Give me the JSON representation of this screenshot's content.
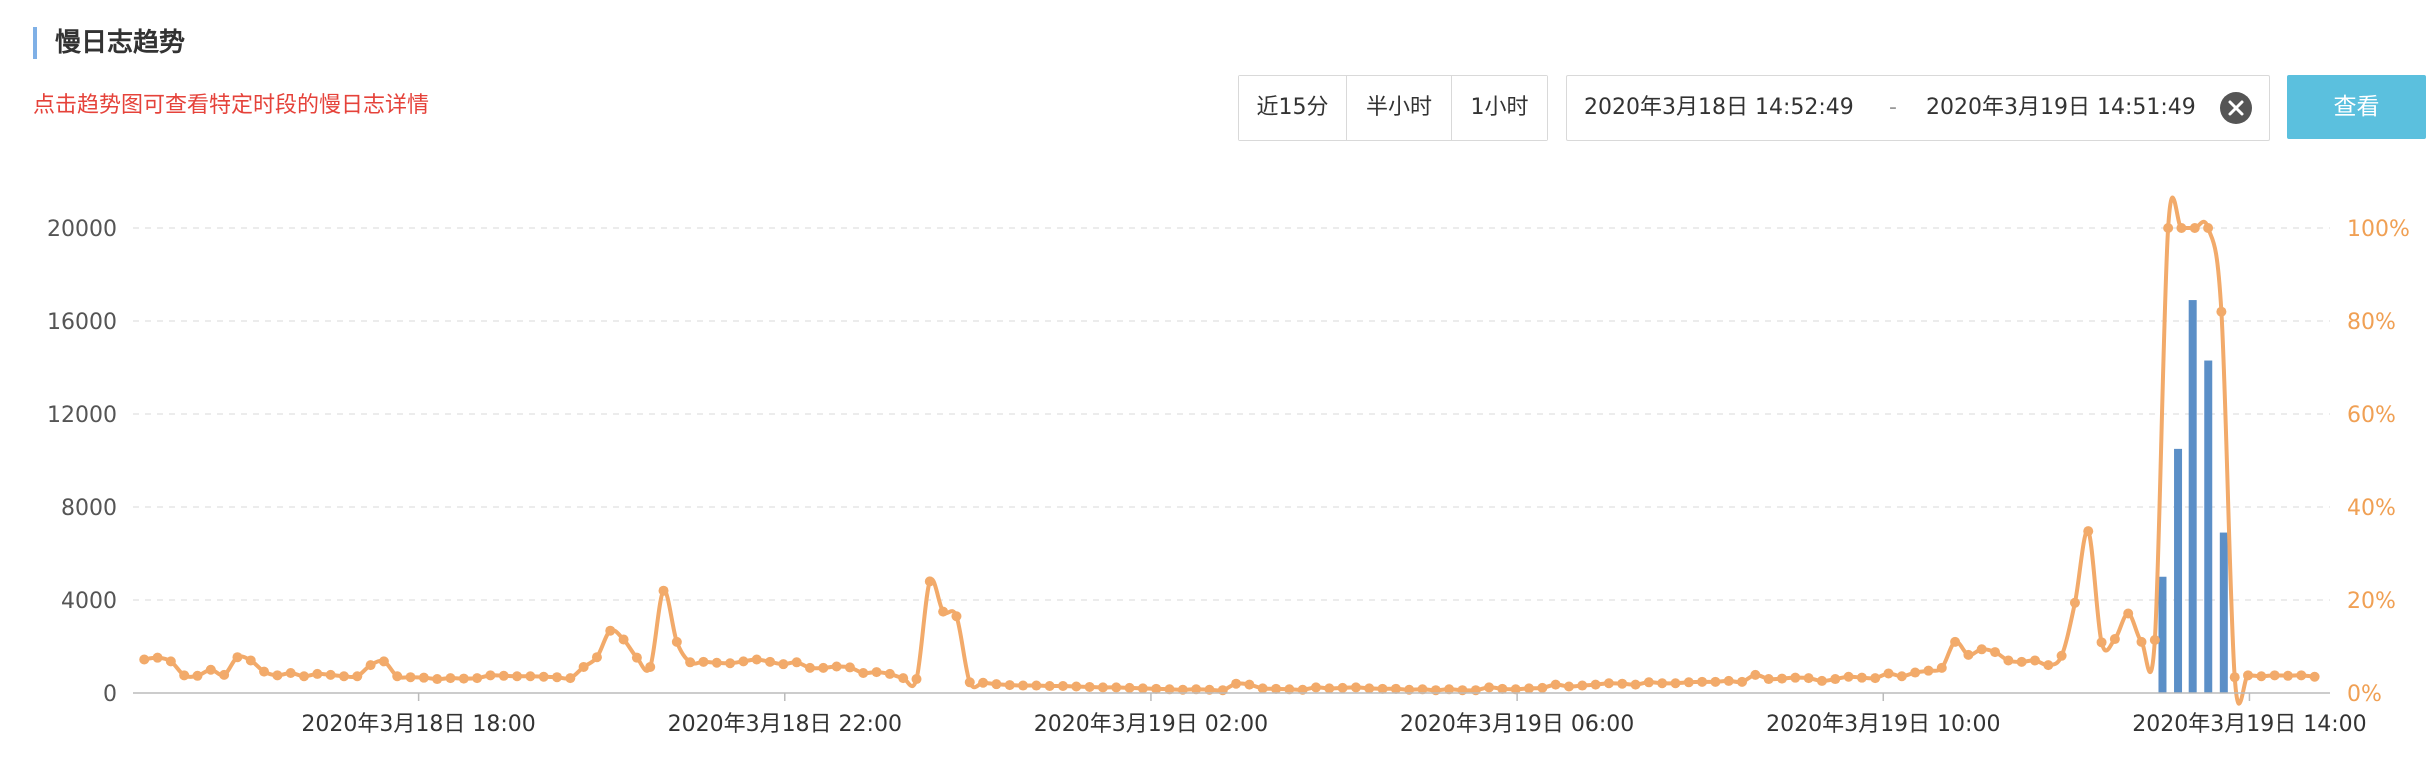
{
  "header": {
    "title": "慢日志趋势",
    "hint": "点击趋势图可查看特定时段的慢日志详情"
  },
  "range_buttons": [
    "近15分",
    "半小时",
    "1小时"
  ],
  "date_range": {
    "start": "2020年3月18日 14:52:49",
    "separator": "-",
    "end": "2020年3月19日 14:51:49"
  },
  "query_button": "查看",
  "colors": {
    "line": "#f2aa6a",
    "bar": "#5b8fc7",
    "hint": "#e5423a",
    "query_button": "#5bc0de",
    "right_axis": "#f0a054"
  },
  "chart_data": {
    "type": "bar+line",
    "y_left": {
      "ticks": [
        "0",
        "4000",
        "8000",
        "12000",
        "16000",
        "20000"
      ],
      "range": [
        0,
        20000
      ]
    },
    "y_right": {
      "ticks": [
        "0%",
        "20%",
        "40%",
        "60%",
        "80%",
        "100%"
      ],
      "range": [
        0,
        100
      ]
    },
    "x_ticks": [
      {
        "label": "2020年3月18日 18:00",
        "t": 3.12
      },
      {
        "label": "2020年3月18日 22:00",
        "t": 7.12
      },
      {
        "label": "2020年3月19日 02:00",
        "t": 11.12
      },
      {
        "label": "2020年3月19日 06:00",
        "t": 15.12
      },
      {
        "label": "2020年3月19日 10:00",
        "t": 19.12
      },
      {
        "label": "2020年3月19日 14:00",
        "t": 23.12
      }
    ],
    "x_range": [
      0,
      24
    ],
    "bars": [
      {
        "t": 22.17,
        "value": 5000
      },
      {
        "t": 22.34,
        "value": 10500
      },
      {
        "t": 22.5,
        "value": 16900
      },
      {
        "t": 22.67,
        "value": 14300
      },
      {
        "t": 22.84,
        "value": 6900
      }
    ],
    "line_pct": [
      7.2,
      7.6,
      6.8,
      3.8,
      3.7,
      5.0,
      3.9,
      7.7,
      7.0,
      4.6,
      3.8,
      4.3,
      3.6,
      4.1,
      3.9,
      3.6,
      3.6,
      6.0,
      6.8,
      3.6,
      3.4,
      3.3,
      3.0,
      3.2,
      3.1,
      3.2,
      3.8,
      3.7,
      3.6,
      3.6,
      3.5,
      3.4,
      3.2,
      5.6,
      7.7,
      13.4,
      11.5,
      7.6,
      5.6,
      22.0,
      11.0,
      6.6,
      6.7,
      6.5,
      6.4,
      6.8,
      7.2,
      6.7,
      6.2,
      6.6,
      5.4,
      5.4,
      5.7,
      5.5,
      4.3,
      4.5,
      4.1,
      3.2,
      3.0,
      24.0,
      17.5,
      16.5,
      2.3,
      2.2,
      1.9,
      1.7,
      1.6,
      1.6,
      1.5,
      1.5,
      1.4,
      1.3,
      1.2,
      1.2,
      1.1,
      1.0,
      0.9,
      0.8,
      0.7,
      0.8,
      0.7,
      0.6,
      2.0,
      1.8,
      1.0,
      0.9,
      0.8,
      0.7,
      1.2,
      1.0,
      1.1,
      1.2,
      1.0,
      0.9,
      0.9,
      0.7,
      0.8,
      0.6,
      0.8,
      0.6,
      0.6,
      1.2,
      0.9,
      0.8,
      1.0,
      1.1,
      1.8,
      1.4,
      1.6,
      1.8,
      2.1,
      2.0,
      1.8,
      2.3,
      2.1,
      2.1,
      2.3,
      2.4,
      2.4,
      2.6,
      2.4,
      3.9,
      3.0,
      3.1,
      3.3,
      3.2,
      2.6,
      3.0,
      3.5,
      3.3,
      3.2,
      4.2,
      3.6,
      4.4,
      4.8,
      5.4,
      11.0,
      8.2,
      9.4,
      8.8,
      7.0,
      6.7,
      7.0,
      6.0,
      8.0,
      19.4,
      34.8,
      10.9,
      11.6,
      17.1,
      11.0,
      11.4,
      100,
      100,
      100,
      100,
      82.0,
      3.4,
      3.8,
      3.6,
      3.8,
      3.7,
      3.8,
      3.5
    ]
  }
}
